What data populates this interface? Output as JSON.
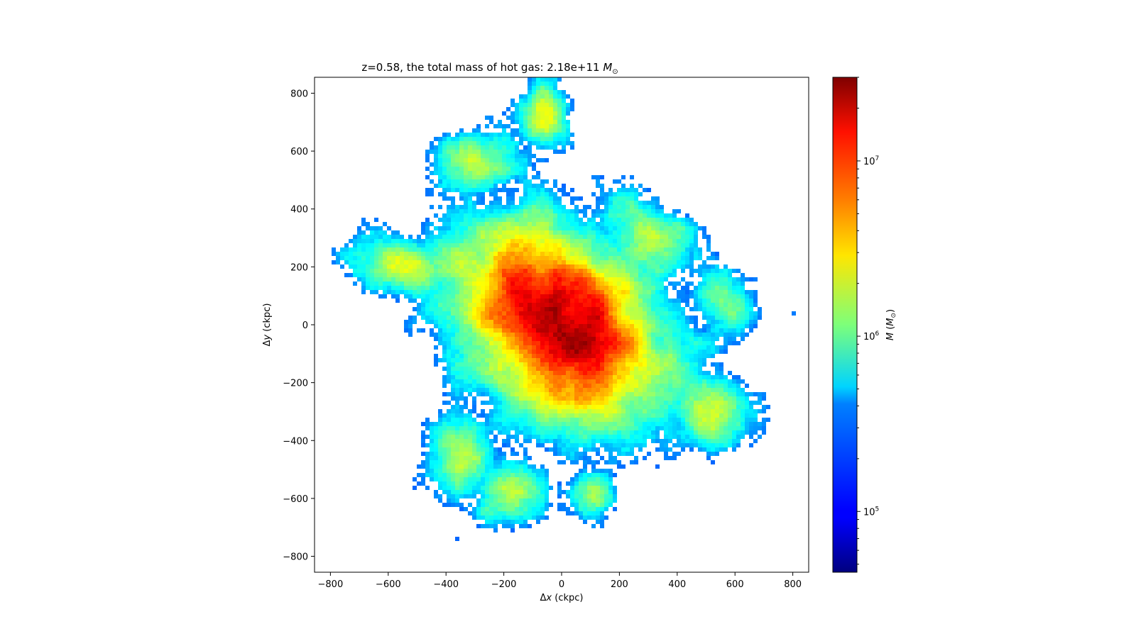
{
  "chart_data": {
    "type": "heatmap",
    "title": "z=0.58, the total mass of hot gas: 2.18e+11 M⊙",
    "title_parts": {
      "prefix": "z=0.58, the total mass of hot gas: 2.18e+11 ",
      "unit_symbol": "M",
      "unit_subscript": "⊙"
    },
    "xlabel": "Δx (ckpc)",
    "ylabel": "Δy (ckpc)",
    "xlabel_parts": {
      "delta": "Δ",
      "var": "x",
      "unit": " (ckpc)"
    },
    "ylabel_parts": {
      "delta": "Δ",
      "var": "y",
      "unit": " (ckpc)"
    },
    "xlim": [
      -855,
      855
    ],
    "ylim": [
      -855,
      855
    ],
    "xticks": [
      -800,
      -600,
      -400,
      -200,
      0,
      200,
      400,
      600,
      800
    ],
    "yticks": [
      -800,
      -600,
      -400,
      -200,
      0,
      200,
      400,
      600,
      800
    ],
    "xtick_labels": [
      "−800",
      "−600",
      "−400",
      "−200",
      "0",
      "200",
      "400",
      "600",
      "800"
    ],
    "ytick_labels": [
      "−800",
      "−600",
      "−400",
      "−200",
      "0",
      "200",
      "400",
      "600",
      "800"
    ],
    "colorbar": {
      "label": "M (M⊙)",
      "label_parts": {
        "var": "M",
        "open": " (",
        "unit": "M",
        "sub": "⊙",
        "close": ")"
      },
      "scale": "log",
      "range": [
        45000,
        30000000
      ],
      "colormap": "jet",
      "major_ticks": [
        100000,
        1000000,
        10000000
      ],
      "major_tick_labels": [
        {
          "base": "10",
          "exp": "5"
        },
        {
          "base": "10",
          "exp": "6"
        },
        {
          "base": "10",
          "exp": "7"
        }
      ]
    },
    "structure": {
      "description_values": {
        "center": [
          0,
          0
        ],
        "peak_mass": 30000000,
        "edge_mass": 50000,
        "major_axis_angle_deg": -45,
        "extent_x": [
          -740,
          680
        ],
        "extent_y": [
          -700,
          850
        ]
      }
    }
  }
}
